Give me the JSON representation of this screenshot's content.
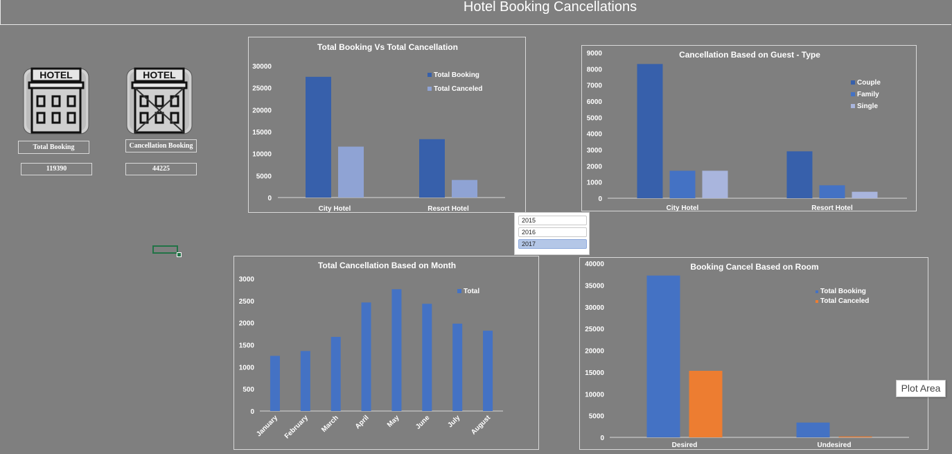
{
  "header": {
    "title": "Hotel Booking Cancellations"
  },
  "kpis": [
    {
      "label": "Total Booking",
      "value": "119390",
      "icon": "hotel-building-icon"
    },
    {
      "label": "Cancellation Booking",
      "value": "44225",
      "icon": "hotel-cancelled-icon"
    }
  ],
  "slicer": {
    "items": [
      {
        "label": "2015",
        "selected": false
      },
      {
        "label": "2016",
        "selected": false
      },
      {
        "label": "2017",
        "selected": true
      }
    ]
  },
  "tooltip": {
    "text": "Plot Area"
  },
  "colors": {
    "background": "#7f7f7f",
    "blue_dark": "#3760ab",
    "blue_light": "#8fa3d4",
    "blue_mid": "#4472c4",
    "orange": "#ed7d31"
  },
  "chart_data": [
    {
      "id": "booking-vs-cancel",
      "type": "bar",
      "title": "Total Booking Vs Total Cancellation",
      "categories": [
        "City Hotel",
        "Resort Hotel"
      ],
      "series": [
        {
          "name": "Total Booking",
          "values": [
            27500,
            13300
          ],
          "color": "#3760ab"
        },
        {
          "name": "Total Canceled",
          "values": [
            11600,
            4000
          ],
          "color": "#8fa3d4"
        }
      ],
      "ylim": [
        0,
        30000
      ],
      "yticks": [
        "0",
        "5000",
        "10000",
        "15000",
        "20000",
        "25000",
        "30000"
      ],
      "legend": "top-right"
    },
    {
      "id": "guest-type",
      "type": "bar",
      "title": "Cancellation Based on Guest - Type",
      "categories": [
        "City Hotel",
        "Resort Hotel"
      ],
      "series": [
        {
          "name": "Couple",
          "values": [
            8300,
            2900
          ],
          "color": "#3760ab"
        },
        {
          "name": "Family",
          "values": [
            1700,
            800
          ],
          "color": "#4472c4"
        },
        {
          "name": "Single",
          "values": [
            1700,
            400
          ],
          "color": "#a9b5dd"
        }
      ],
      "ylim": [
        0,
        9000
      ],
      "yticks": [
        "0",
        "1000",
        "2000",
        "3000",
        "4000",
        "5000",
        "6000",
        "7000",
        "8000",
        "9000"
      ],
      "legend": "right"
    },
    {
      "id": "by-month",
      "type": "bar",
      "title": "Total Cancellation Based on Month",
      "categories": [
        "January",
        "February",
        "March",
        "April",
        "May",
        "June",
        "July",
        "August"
      ],
      "series": [
        {
          "name": "Total",
          "values": [
            1250,
            1360,
            1680,
            2460,
            2760,
            2430,
            1980,
            1820
          ],
          "color": "#4472c4"
        }
      ],
      "ylim": [
        0,
        3000
      ],
      "yticks": [
        "0",
        "500",
        "1000",
        "1500",
        "2000",
        "2500",
        "3000"
      ],
      "legend": "top-right"
    },
    {
      "id": "by-room",
      "type": "bar",
      "title": "Booking Cancel Based on Room",
      "categories": [
        "Desired",
        "Undesired"
      ],
      "series": [
        {
          "name": "Total Booking",
          "values": [
            37200,
            3400
          ],
          "color": "#4472c4"
        },
        {
          "name": "Total Canceled",
          "values": [
            15300,
            200
          ],
          "color": "#ed7d31"
        }
      ],
      "ylim": [
        0,
        40000
      ],
      "yticks": [
        "0",
        "5000",
        "10000",
        "15000",
        "20000",
        "25000",
        "30000",
        "35000",
        "40000"
      ],
      "legend": "top-right"
    }
  ]
}
